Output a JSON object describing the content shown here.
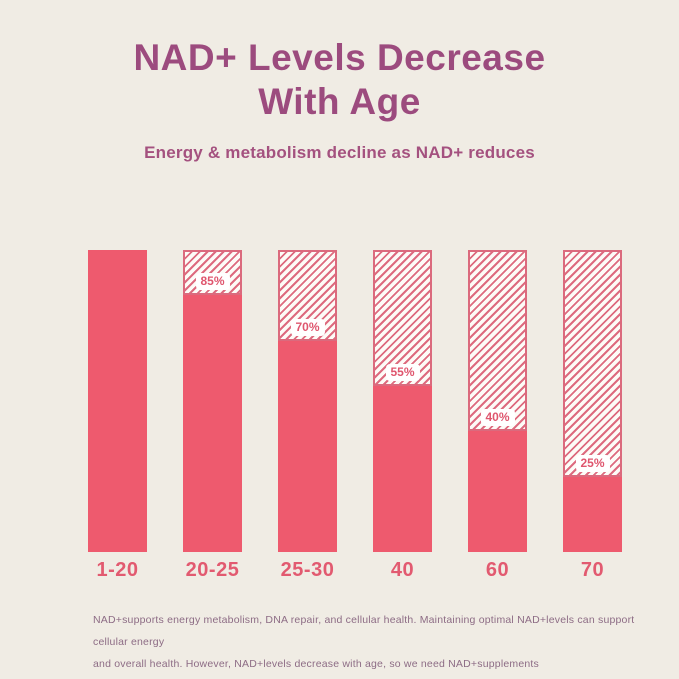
{
  "header": {
    "title_line1": "NAD+ Levels Decrease",
    "title_line2": "With Age",
    "subtitle": "Energy & metabolism decline as NAD+ reduces"
  },
  "chart_data": {
    "type": "bar",
    "title": "NAD+ Levels Decrease With Age",
    "subtitle": "Energy & metabolism decline as NAD+ reduces",
    "categories": [
      "1-20",
      "20-25",
      "25-30",
      "40",
      "60",
      "70"
    ],
    "values": [
      100,
      85,
      70,
      55,
      40,
      25
    ],
    "value_labels": [
      "",
      "85%",
      "70%",
      "55%",
      "40%",
      "25%"
    ],
    "unit": "%",
    "ylim": [
      0,
      100
    ],
    "grid": false,
    "legend": false,
    "note": "solid fill = remaining NAD+ level; diagonal-hatched outline = depleted portion up to 100%"
  },
  "footer": {
    "line1": "NAD+supports energy metabolism, DNA repair, and cellular health. Maintaining optimal NAD+levels can support cellular energy",
    "line2": "and overall health. However, NAD+levels decrease with age, so we need NAD+supplements"
  },
  "colors": {
    "background": "#f0ece4",
    "title": "#9c4b7e",
    "subtitle": "#a4517f",
    "bar_solid": "#ee5a6e",
    "hatch_stripe": "#dd6b7f",
    "hatch_border": "#db6a7d",
    "hatch_background": "#fdfbf7",
    "axis_label": "#e25a70",
    "value_label_text": "#df566e",
    "value_label_background": "#ffffff",
    "footer_text": "#8d6c85"
  }
}
